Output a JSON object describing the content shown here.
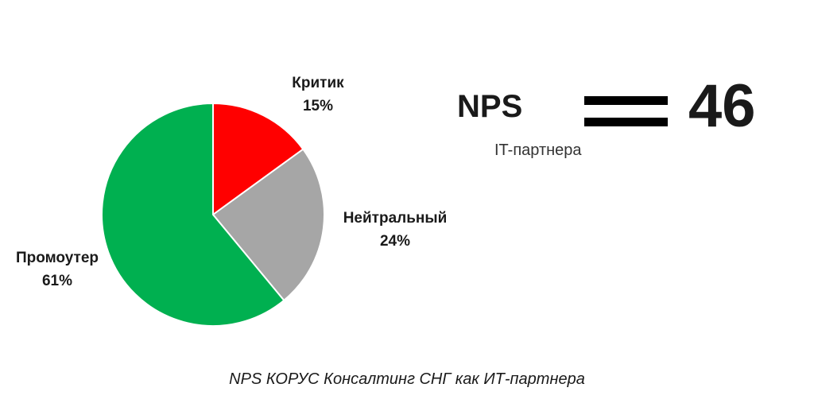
{
  "chart_data": {
    "type": "pie",
    "slices": [
      {
        "name": "Критик",
        "value": 15,
        "label": "15%",
        "color": "#ff0000"
      },
      {
        "name": "Нейтральный",
        "value": 24,
        "label": "24%",
        "color": "#a6a6a6"
      },
      {
        "name": "Промоутер",
        "value": 61,
        "label": "61%",
        "color": "#00b050"
      }
    ],
    "legend": "none"
  },
  "nps": {
    "title": "NPS",
    "subtitle": "IT-партнера",
    "value": "46"
  },
  "caption": "NPS КОРУС Консалтинг СНГ как ИТ-партнера"
}
